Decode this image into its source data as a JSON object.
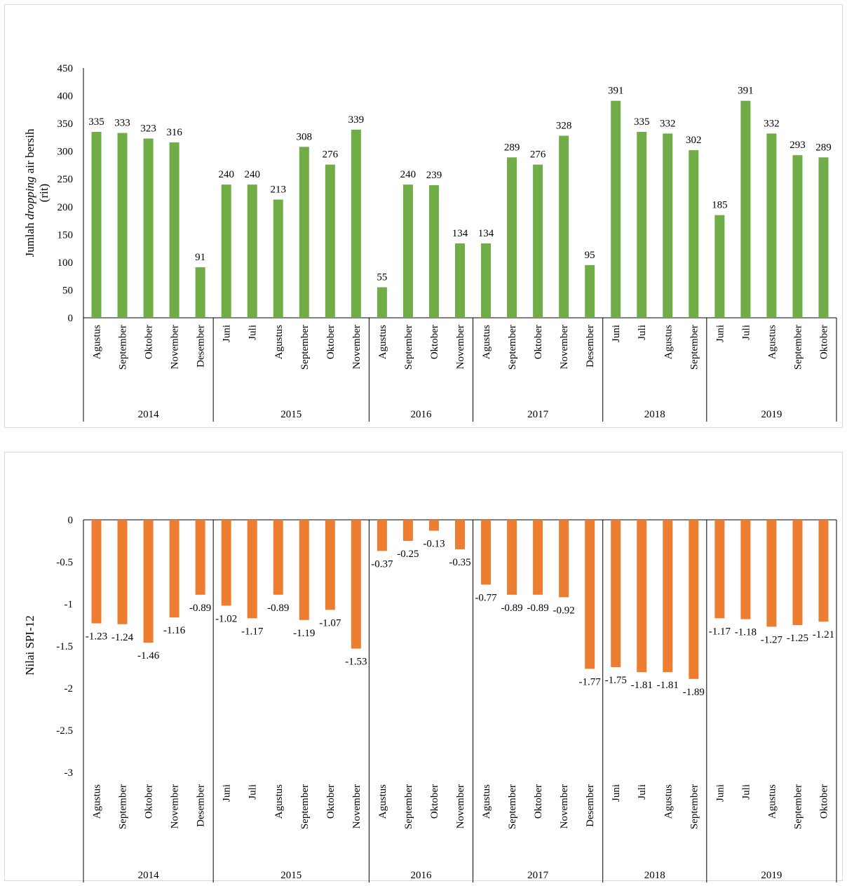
{
  "charts": [
    {
      "type": "bar",
      "bar_color": "#70ad47",
      "ylabel_pre": "Jumlah ",
      "ylabel_italic": "dropping",
      "ylabel_post": " air bersih",
      "ylabel_line2": "(rit)",
      "ylim": [
        0,
        450
      ],
      "yticks": [
        0,
        50,
        100,
        150,
        200,
        250,
        300,
        350,
        400,
        450
      ],
      "months": [
        "Agustus",
        "September",
        "Oktober",
        "November",
        "Desember",
        "Juni",
        "Juli",
        "Agustus",
        "September",
        "Oktober",
        "November",
        "Agustus",
        "September",
        "Oktober",
        "November",
        "Agustus",
        "September",
        "Oktober",
        "November",
        "Desember",
        "Juni",
        "Juli",
        "Agustus",
        "September",
        "Juni",
        "Juli",
        "Agustus",
        "September",
        "Oktober"
      ],
      "years": [
        {
          "label": "2014",
          "count": 5
        },
        {
          "label": "2015",
          "count": 6
        },
        {
          "label": "2016",
          "count": 4
        },
        {
          "label": "2017",
          "count": 5
        },
        {
          "label": "2018",
          "count": 4
        },
        {
          "label": "2019",
          "count": 5
        }
      ],
      "values": [
        335,
        333,
        323,
        316,
        91,
        240,
        240,
        213,
        308,
        276,
        339,
        55,
        240,
        239,
        134,
        134,
        289,
        276,
        328,
        95,
        391,
        335,
        332,
        302,
        185,
        391,
        332,
        293,
        289
      ],
      "data_labels": [
        "335",
        "333",
        "323",
        "316",
        "91",
        "240",
        "240",
        "213",
        "308",
        "276",
        "339",
        "55",
        "240",
        "239",
        "134",
        "134",
        "289",
        "276",
        "328",
        "95",
        "391",
        "335",
        "332",
        "302",
        "185",
        "391",
        "332",
        "293",
        "289"
      ]
    },
    {
      "type": "bar",
      "bar_color": "#ed7d31",
      "ylabel": "Nilai SPI-12",
      "ylim": [
        -3,
        0
      ],
      "yticks": [
        0,
        -0.5,
        -1,
        -1.5,
        -2,
        -2.5,
        -3
      ],
      "ytick_labels": [
        "0",
        "-0.5",
        "-1",
        "-1.5",
        "-2",
        "-2.5",
        "-3"
      ],
      "months": [
        "Agustus",
        "September",
        "Oktober",
        "November",
        "Desember",
        "Juni",
        "Juli",
        "Agustus",
        "September",
        "Oktober",
        "November",
        "Agustus",
        "September",
        "Oktober",
        "November",
        "Agustus",
        "September",
        "Oktober",
        "November",
        "Desember",
        "Juni",
        "Juli",
        "Agustus",
        "September",
        "Juni",
        "Juli",
        "Agustus",
        "September",
        "Oktober"
      ],
      "years": [
        {
          "label": "2014",
          "count": 5
        },
        {
          "label": "2015",
          "count": 6
        },
        {
          "label": "2016",
          "count": 4
        },
        {
          "label": "2017",
          "count": 5
        },
        {
          "label": "2018",
          "count": 4
        },
        {
          "label": "2019",
          "count": 5
        }
      ],
      "values": [
        -1.23,
        -1.24,
        -1.46,
        -1.16,
        -0.89,
        -1.02,
        -1.17,
        -0.89,
        -1.19,
        -1.07,
        -1.53,
        -0.37,
        -0.25,
        -0.13,
        -0.35,
        -0.77,
        -0.89,
        -0.89,
        -0.92,
        -1.77,
        -1.75,
        -1.81,
        -1.81,
        -1.89,
        -1.17,
        -1.18,
        -1.27,
        -1.25,
        -1.21
      ],
      "data_labels": [
        "-1.23",
        "-1.24",
        "-1.46",
        "-1.16",
        "-0.89",
        "-1.02",
        "-1.17",
        "-0.89",
        "-1.19",
        "-1.07",
        "-1.53",
        "-0.37",
        "-0.25",
        "-0.13",
        "-0.35",
        "-0.77",
        "-0.89",
        "-0.89",
        "-0.92",
        "-1.77",
        "-1.75",
        "-1.81",
        "-1.81",
        "-1.89",
        "-1.17",
        "-1.18",
        "-1.27",
        "-1.25",
        "-1.21"
      ]
    }
  ]
}
